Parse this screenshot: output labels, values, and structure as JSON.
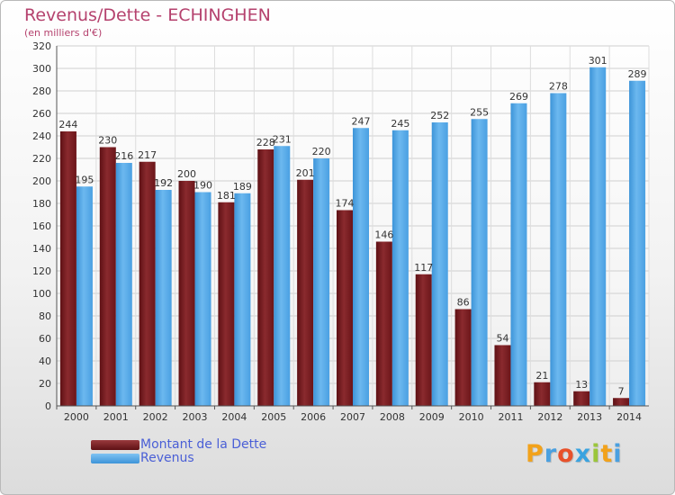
{
  "colors": {
    "debt": "#7a1c20",
    "debt_light": "#9a3a3d",
    "revenue": "#4ea3e3",
    "revenue_light": "#6fb8ee",
    "title": "#b5426e",
    "legend_text": "#4a5fd6"
  },
  "logo": {
    "letters": [
      "P",
      "r",
      "o",
      "x",
      "i",
      "t",
      "i"
    ],
    "letter_colors": [
      "#f2a21b",
      "#4aa0e0",
      "#e8512a",
      "#3aa3e0",
      "#9bc63b",
      "#f2a21b",
      "#4aa0e0"
    ]
  },
  "chart_data": {
    "type": "bar",
    "title": "Revenus/Dette - ECHINGHEN",
    "subtitle": "(en milliers d'€)",
    "categories": [
      "2000",
      "2001",
      "2002",
      "2003",
      "2004",
      "2005",
      "2006",
      "2007",
      "2008",
      "2009",
      "2010",
      "2011",
      "2012",
      "2013",
      "2014"
    ],
    "series": [
      {
        "name": "Montant de la Dette",
        "values": [
          244,
          230,
          217,
          200,
          181,
          228,
          201,
          174,
          146,
          117,
          86,
          54,
          21,
          13,
          7
        ]
      },
      {
        "name": "Revenus",
        "values": [
          195,
          216,
          192,
          190,
          189,
          231,
          220,
          247,
          245,
          252,
          255,
          269,
          278,
          301,
          289
        ]
      }
    ],
    "ylim": [
      0,
      320
    ],
    "yticks": [
      0,
      20,
      40,
      60,
      80,
      100,
      120,
      140,
      160,
      180,
      200,
      220,
      240,
      260,
      280,
      300,
      320
    ],
    "xlabel": "",
    "ylabel": "",
    "grid": true,
    "legend": "bottom-left"
  }
}
